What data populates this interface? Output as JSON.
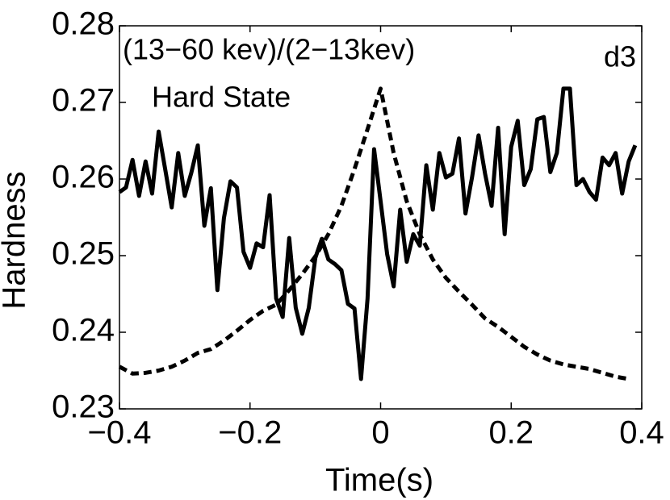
{
  "chart_data": {
    "type": "line",
    "xlabel": "Time(s)",
    "ylabel": "Hardness",
    "annotations": [
      "(13−60 kev)/(2−13kev)",
      "Hard State",
      "d3"
    ],
    "xlim": [
      -0.4,
      0.4
    ],
    "xticks": [
      {
        "value": -0.4,
        "label": "−0.4"
      },
      {
        "value": -0.2,
        "label": "−0.2"
      },
      0,
      0.2,
      0.4
    ],
    "ylim": [
      0.23,
      0.28
    ],
    "yticks": [
      0.23,
      0.24,
      0.25,
      0.26,
      0.27,
      0.28
    ],
    "grid": false,
    "series": [
      {
        "color": "#000000",
        "style": "solid",
        "x": [
          -0.4,
          -0.39,
          -0.38,
          -0.37,
          -0.36,
          -0.35,
          -0.34,
          -0.33,
          -0.32,
          -0.31,
          -0.3,
          -0.29,
          -0.28,
          -0.27,
          -0.26,
          -0.25,
          -0.24,
          -0.23,
          -0.22,
          -0.21,
          -0.2,
          -0.19,
          -0.18,
          -0.17,
          -0.16,
          -0.15,
          -0.14,
          -0.13,
          -0.12,
          -0.11,
          -0.1,
          -0.09,
          -0.08,
          -0.07,
          -0.06,
          -0.05,
          -0.04,
          -0.03,
          -0.02,
          -0.01,
          0,
          0.01,
          0.02,
          0.03,
          0.04,
          0.05,
          0.06,
          0.07,
          0.08,
          0.09,
          0.1,
          0.11,
          0.12,
          0.13,
          0.14,
          0.15,
          0.16,
          0.17,
          0.18,
          0.19,
          0.2,
          0.21,
          0.22,
          0.23,
          0.24,
          0.25,
          0.26,
          0.27,
          0.28,
          0.29,
          0.3,
          0.31,
          0.32,
          0.33,
          0.34,
          0.35,
          0.36,
          0.37,
          0.38,
          0.39
        ],
        "values": [
          0.2583,
          0.2589,
          0.2625,
          0.2578,
          0.2623,
          0.2581,
          0.2662,
          0.2613,
          0.2563,
          0.2634,
          0.2578,
          0.2608,
          0.2644,
          0.2539,
          0.2588,
          0.2455,
          0.2549,
          0.2597,
          0.2589,
          0.2505,
          0.2484,
          0.2516,
          0.2511,
          0.2579,
          0.2444,
          0.242,
          0.2523,
          0.2432,
          0.2398,
          0.2432,
          0.2497,
          0.2522,
          0.2495,
          0.2489,
          0.2481,
          0.2437,
          0.2431,
          0.2339,
          0.2444,
          0.2639,
          0.2571,
          0.2502,
          0.246,
          0.256,
          0.2492,
          0.2528,
          0.2513,
          0.2618,
          0.256,
          0.2634,
          0.2602,
          0.2607,
          0.2653,
          0.2555,
          0.2602,
          0.2657,
          0.2607,
          0.2565,
          0.2667,
          0.2528,
          0.2642,
          0.2676,
          0.2592,
          0.2613,
          0.2678,
          0.2681,
          0.2609,
          0.2634,
          0.2718,
          0.2718,
          0.2592,
          0.26,
          0.2583,
          0.2573,
          0.2628,
          0.2618,
          0.2634,
          0.2581,
          0.2623,
          0.2644
        ]
      },
      {
        "color": "#000000",
        "style": "dashed",
        "x": [
          -0.4,
          -0.38,
          -0.36,
          -0.34,
          -0.32,
          -0.3,
          -0.28,
          -0.26,
          -0.24,
          -0.22,
          -0.2,
          -0.18,
          -0.16,
          -0.14,
          -0.12,
          -0.1,
          -0.08,
          -0.06,
          -0.04,
          -0.02,
          0,
          0.02,
          0.04,
          0.06,
          0.08,
          0.1,
          0.12,
          0.14,
          0.16,
          0.18,
          0.2,
          0.22,
          0.24,
          0.26,
          0.28,
          0.3,
          0.32,
          0.34,
          0.36,
          0.38
        ],
        "values": [
          0.2355,
          0.2346,
          0.2347,
          0.235,
          0.2355,
          0.2363,
          0.2373,
          0.2378,
          0.2389,
          0.2402,
          0.2416,
          0.2428,
          0.2436,
          0.2455,
          0.2476,
          0.2499,
          0.2528,
          0.2565,
          0.2613,
          0.2665,
          0.2718,
          0.2634,
          0.2571,
          0.2528,
          0.2495,
          0.2471,
          0.2453,
          0.2436,
          0.2418,
          0.2407,
          0.2394,
          0.2381,
          0.2371,
          0.2363,
          0.2358,
          0.2355,
          0.2352,
          0.2347,
          0.2342,
          0.2339
        ]
      }
    ]
  }
}
